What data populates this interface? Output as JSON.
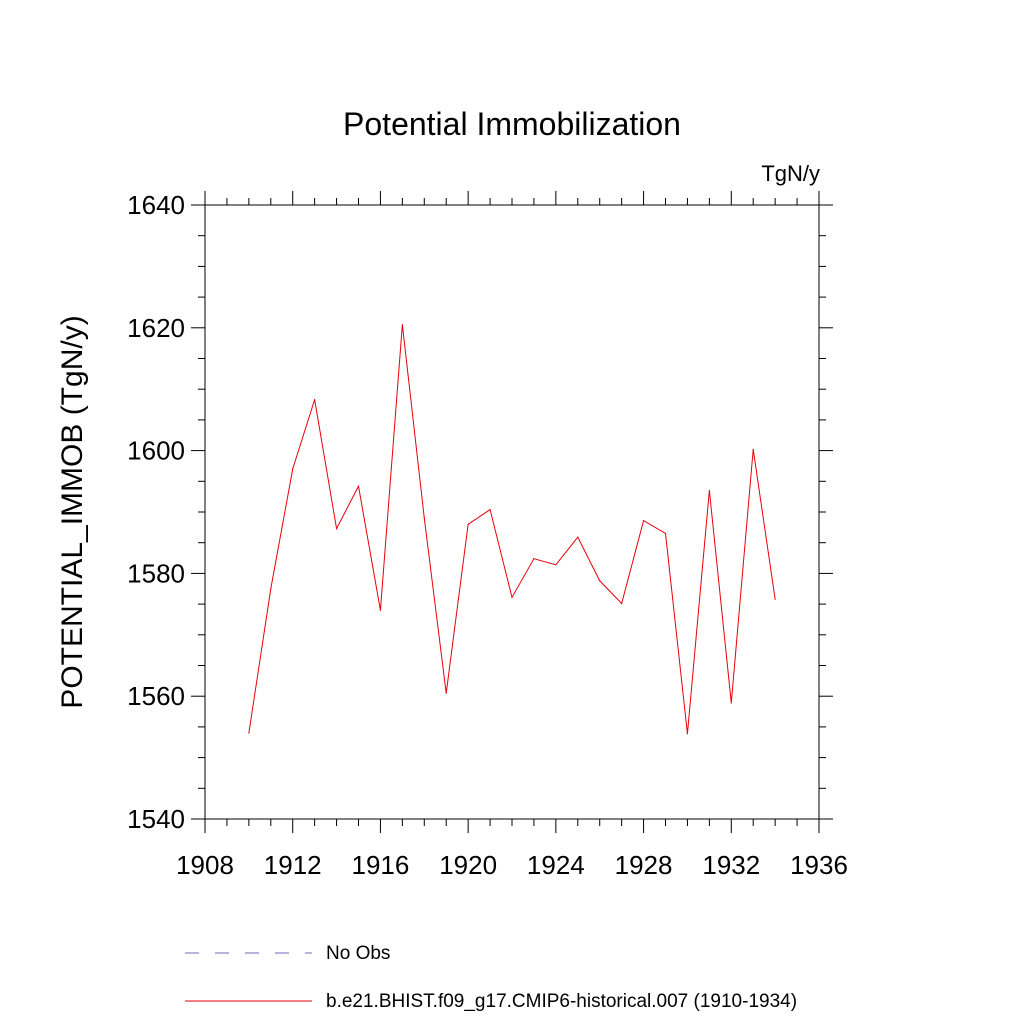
{
  "chart_data": {
    "type": "line",
    "title": "Potential Immobilization",
    "units_label": "TgN/y",
    "ylabel": "POTENTIAL_IMMOB  (TgN/y)",
    "xlabel": "",
    "xlim": [
      1908,
      1936
    ],
    "ylim": [
      1540,
      1640
    ],
    "x_ticks": [
      1908,
      1912,
      1916,
      1920,
      1924,
      1928,
      1932,
      1936
    ],
    "y_ticks": [
      1540,
      1560,
      1580,
      1600,
      1620,
      1640
    ],
    "grid": false,
    "legend_position": "bottom",
    "series": [
      {
        "name": "No Obs",
        "style": "dashed",
        "color": "#6a6ab8",
        "x": [],
        "values": []
      },
      {
        "name": "b.e21.BHIST.f09_g17.CMIP6-historical.007 (1910-1934)",
        "style": "solid",
        "color": "#e8000b",
        "x": [
          1910,
          1911,
          1912,
          1913,
          1914,
          1915,
          1916,
          1917,
          1918,
          1919,
          1920,
          1921,
          1922,
          1923,
          1924,
          1925,
          1926,
          1927,
          1928,
          1929,
          1930,
          1931,
          1932,
          1933,
          1934
        ],
        "values": [
          1554.0,
          1577.5,
          1597.0,
          1608.3,
          1587.3,
          1594.2,
          1574.0,
          1620.5,
          1589.0,
          1560.5,
          1588.0,
          1590.4,
          1576.1,
          1582.4,
          1581.4,
          1585.9,
          1578.8,
          1575.1,
          1588.6,
          1586.5,
          1553.9,
          1593.5,
          1558.9,
          1600.2,
          1575.8
        ]
      }
    ]
  }
}
